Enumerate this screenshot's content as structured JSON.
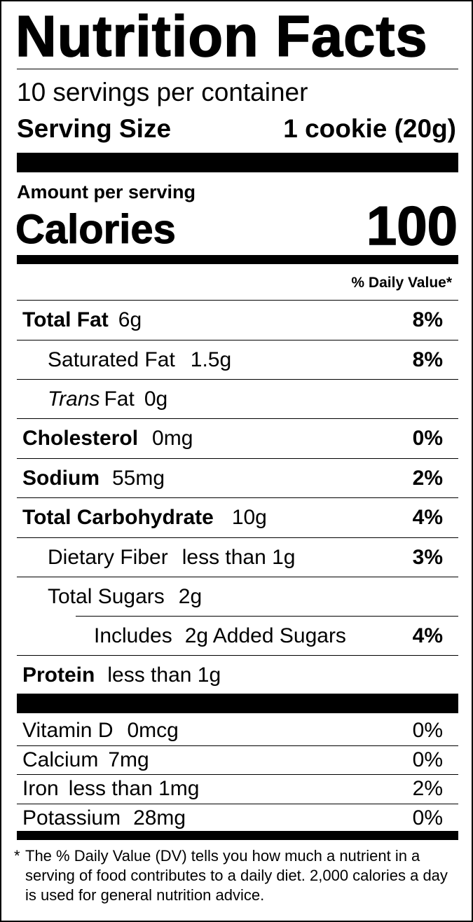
{
  "title": "Nutrition Facts",
  "servings_per_container": "10 servings per container",
  "serving_size": {
    "label": "Serving Size",
    "value": "1 cookie (20g)"
  },
  "amount_per_serving": "Amount per serving",
  "calories": {
    "label": "Calories",
    "value": "100"
  },
  "daily_value_header": "% Daily Value*",
  "nutrients": [
    {
      "name": "Total Fat",
      "amount": "6g",
      "dv": "8%"
    },
    {
      "name": "Saturated Fat",
      "amount": "1.5g",
      "dv": "8%"
    },
    {
      "name_italic": "Trans",
      "name": "Fat",
      "amount": "0g",
      "dv": ""
    },
    {
      "name": "Cholesterol",
      "amount": "0mg",
      "dv": "0%"
    },
    {
      "name": "Sodium",
      "amount": "55mg",
      "dv": "2%"
    },
    {
      "name": "Total Carbohydrate",
      "amount": "10g",
      "dv": "4%"
    },
    {
      "name": "Dietary Fiber",
      "amount": "less than 1g",
      "dv": "3%"
    },
    {
      "name": "Total Sugars",
      "amount": "2g",
      "dv": ""
    },
    {
      "name": "Includes",
      "amount": "2g Added Sugars",
      "dv": "4%"
    },
    {
      "name": "Protein",
      "amount": "less than 1g",
      "dv": ""
    }
  ],
  "vitamins": [
    {
      "name": "Vitamin D",
      "amount": "0mcg",
      "dv": "0%"
    },
    {
      "name": "Calcium",
      "amount": "7mg",
      "dv": "0%"
    },
    {
      "name": "Iron",
      "amount": "less than 1mg",
      "dv": "2%"
    },
    {
      "name": "Potassium",
      "amount": "28mg",
      "dv": "0%"
    }
  ],
  "footnote": {
    "star": "*",
    "text": "The % Daily Value (DV) tells you how much a nutrient in a serving of food contributes to a daily diet. 2,000 calories a day is used for general nutrition advice."
  }
}
